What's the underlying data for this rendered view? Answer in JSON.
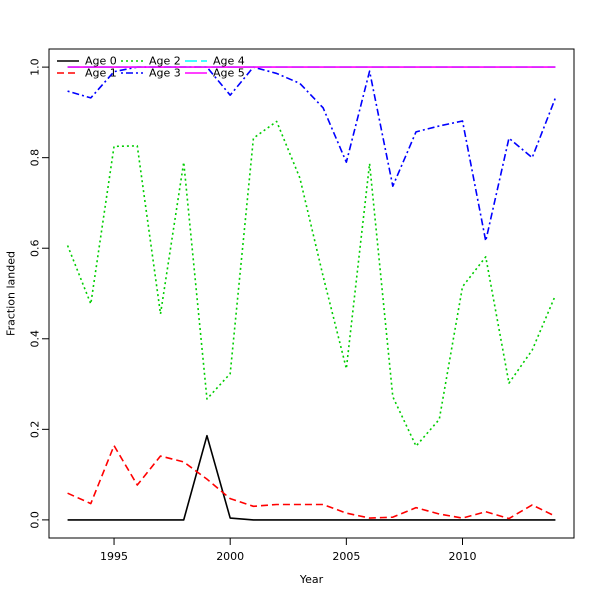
{
  "chart_data": {
    "type": "line",
    "title": "",
    "xlabel": "Year",
    "ylabel": "Fraction landed",
    "xlim": [
      1992.2,
      2014.8
    ],
    "ylim": [
      -0.04,
      1.04
    ],
    "x_ticks": [
      1995,
      2000,
      2005,
      2010
    ],
    "x_tick_labels": [
      "1995",
      "2000",
      "2005",
      "2010"
    ],
    "y_ticks": [
      0.0,
      0.2,
      0.4,
      0.6,
      0.8,
      1.0
    ],
    "y_tick_labels": [
      "0.0",
      "0.2",
      "0.4",
      "0.6",
      "0.8",
      "1.0"
    ],
    "grid": false,
    "legend_position": "top-left",
    "x": [
      1993,
      1994,
      1995,
      1996,
      1997,
      1998,
      1999,
      2000,
      2001,
      2002,
      2003,
      2004,
      2005,
      2006,
      2007,
      2008,
      2009,
      2010,
      2011,
      2012,
      2013,
      2014
    ],
    "series": [
      {
        "name": "Age 0",
        "color": "#000000",
        "dash": "solid",
        "values": [
          0.0,
          0.0,
          0.0,
          0.0,
          0.0,
          0.0,
          0.186,
          0.004,
          0.0,
          0.0,
          0.0,
          0.0,
          0.0,
          0.0,
          0.0,
          0.0,
          0.0,
          0.0,
          0.0,
          0.0,
          0.0,
          0.0
        ]
      },
      {
        "name": "Age 1",
        "color": "#ff0000",
        "dash": "dashed",
        "values": [
          0.059,
          0.036,
          0.164,
          0.077,
          0.141,
          0.128,
          0.09,
          0.047,
          0.03,
          0.034,
          0.034,
          0.034,
          0.015,
          0.004,
          0.006,
          0.027,
          0.013,
          0.004,
          0.018,
          0.003,
          0.033,
          0.008
        ]
      },
      {
        "name": "Age 2",
        "color": "#00cd00",
        "dash": "dotted",
        "values": [
          0.606,
          0.477,
          0.825,
          0.826,
          0.455,
          0.79,
          0.267,
          0.323,
          0.843,
          0.88,
          0.755,
          0.538,
          0.334,
          0.787,
          0.272,
          0.163,
          0.222,
          0.515,
          0.581,
          0.302,
          0.375,
          0.496
        ]
      },
      {
        "name": "Age 3",
        "color": "#0000ff",
        "dash": "dotdash",
        "values": [
          0.947,
          0.932,
          0.99,
          1.0,
          1.0,
          1.0,
          1.0,
          0.938,
          1.0,
          0.986,
          0.964,
          0.91,
          0.79,
          0.991,
          0.737,
          0.857,
          0.87,
          0.881,
          0.616,
          0.843,
          0.8,
          0.932
        ]
      },
      {
        "name": "Age 4",
        "color": "#00ffff",
        "dash": "longdash",
        "values": [
          1.0,
          1.0,
          1.0,
          1.0,
          1.0,
          1.0,
          1.0,
          1.0,
          1.0,
          1.0,
          1.0,
          1.0,
          1.0,
          1.0,
          1.0,
          1.0,
          1.0,
          1.0,
          1.0,
          1.0,
          1.0,
          1.0
        ]
      },
      {
        "name": "Age 5",
        "color": "#ff00ff",
        "dash": "solid",
        "values": [
          1.0,
          1.0,
          1.0,
          1.0,
          1.0,
          1.0,
          1.0,
          1.0,
          1.0,
          1.0,
          1.0,
          1.0,
          1.0,
          1.0,
          1.0,
          1.0,
          1.0,
          1.0,
          1.0,
          1.0,
          1.0,
          1.0
        ]
      }
    ]
  }
}
